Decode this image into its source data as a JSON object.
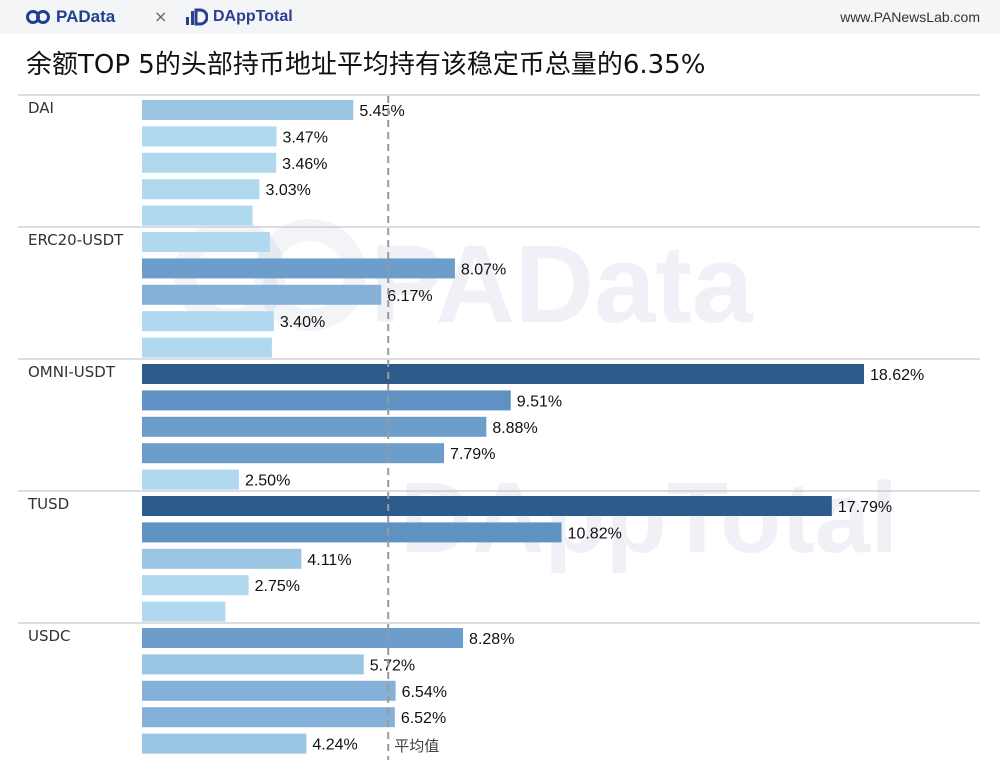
{
  "header": {
    "brand_left": "PAData",
    "separator": "×",
    "brand_right": "DAppTotal",
    "url": "www.PANewsLab.com"
  },
  "watermarks": [
    "PAData",
    "DAppTotal"
  ],
  "colors": {
    "header_bg": "#f4f5f7",
    "bar_dark": "#2d5b8a",
    "bar_mid": "#5c8fc0",
    "bar_light": "#a9d0ea",
    "avg_line": "#9a9a9a",
    "divider": "#c8c8c8"
  },
  "chart_data": {
    "type": "bar",
    "orientation": "horizontal",
    "title": "余额TOP 5的头部持币地址平均持有该稳定币总量的6.35%",
    "xlim": [
      0,
      19
    ],
    "reference_line": {
      "value": 6.35,
      "label": "平均值"
    },
    "groups": [
      {
        "name": "DAI",
        "values": [
          5.45,
          3.47,
          3.46,
          3.03,
          2.85
        ],
        "labels": [
          "5.45%",
          "3.47%",
          "3.46%",
          "3.03%",
          ""
        ]
      },
      {
        "name": "ERC20-USDT",
        "values": [
          3.3,
          8.07,
          6.17,
          3.4,
          3.35
        ],
        "labels": [
          "",
          "8.07%",
          "6.17%",
          "3.40%",
          ""
        ]
      },
      {
        "name": "OMNI-USDT",
        "values": [
          18.62,
          9.51,
          8.88,
          7.79,
          2.5
        ],
        "labels": [
          "18.62%",
          "9.51%",
          "8.88%",
          "7.79%",
          "2.50%"
        ]
      },
      {
        "name": "TUSD",
        "values": [
          17.79,
          10.82,
          4.11,
          2.75,
          2.15
        ],
        "labels": [
          "17.79%",
          "10.82%",
          "4.11%",
          "2.75%",
          ""
        ]
      },
      {
        "name": "USDC",
        "values": [
          8.28,
          5.72,
          6.54,
          6.52,
          4.24
        ],
        "labels": [
          "8.28%",
          "5.72%",
          "6.54%",
          "6.52%",
          "4.24%"
        ]
      }
    ]
  }
}
